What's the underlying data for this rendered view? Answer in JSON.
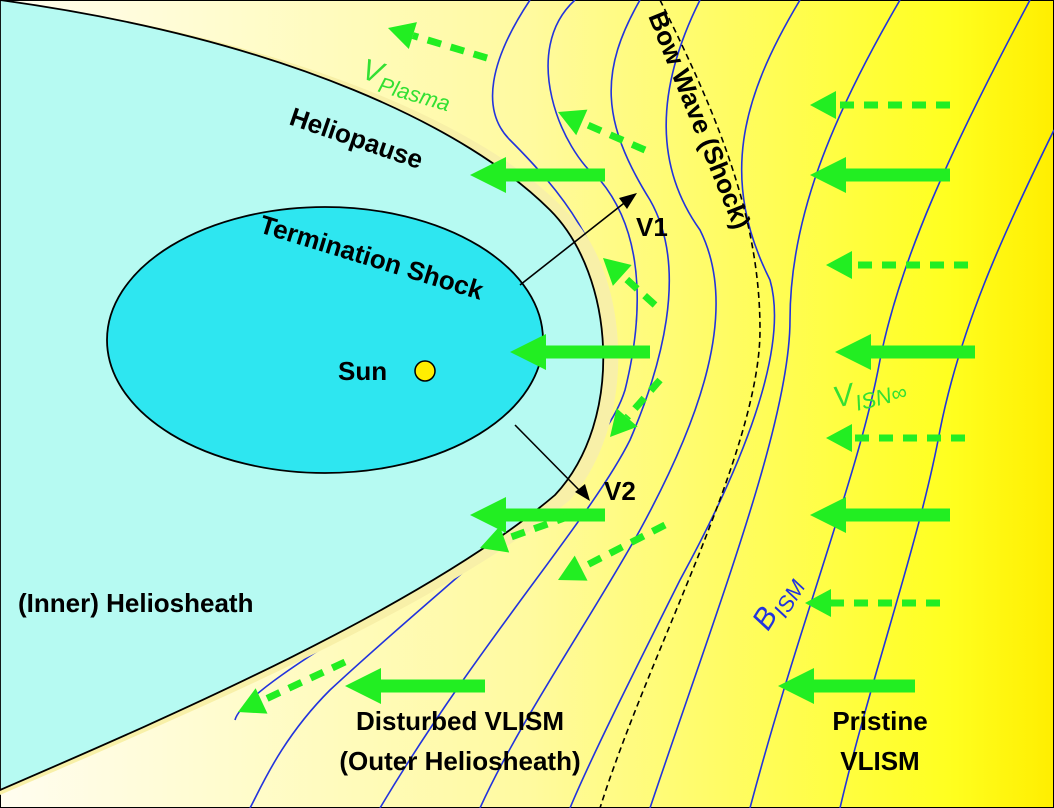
{
  "labels": {
    "v_plasma": {
      "main": "V",
      "sub": "Plasma"
    },
    "heliopause": "Heliopause",
    "termination_shock": "Termination Shock",
    "bow_wave": "Bow Wave (Shock)",
    "v1": "V1",
    "v2": "V2",
    "sun": "Sun",
    "v_isn": {
      "main": "V",
      "sub": "ISN∞"
    },
    "inner_heliosheath": "(Inner) Heliosheath",
    "b_ism": {
      "main": "B",
      "sub": "ISM"
    },
    "disturbed": [
      "Disturbed VLISM",
      "(Outer Heliosheath)"
    ],
    "pristine": [
      "Pristine",
      "VLISM"
    ]
  }
}
